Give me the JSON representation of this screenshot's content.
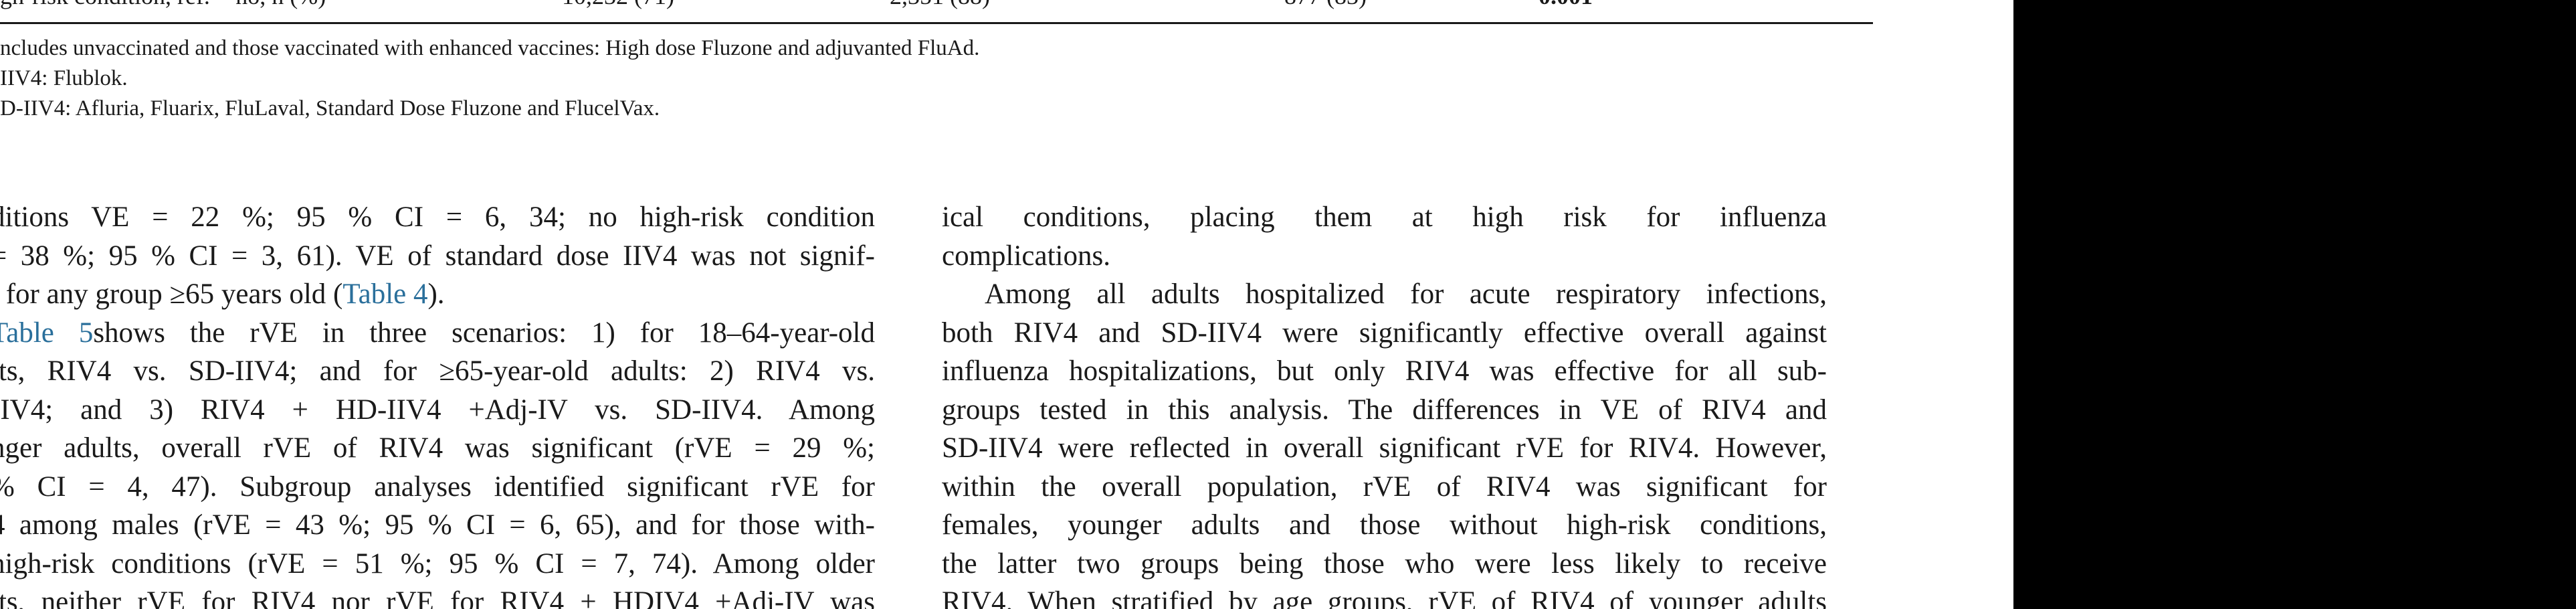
{
  "table_cut_row": {
    "label": "gh-risk condition, ref. = no, n (%)",
    "col2": "10,232 (71)",
    "col3": "2,351 (88)",
    "col4": "877 (83)",
    "col5": "0.001"
  },
  "footnotes": [
    "ncludes unvaccinated and those vaccinated with enhanced vaccines: High dose Fluzone and adjuvanted FluAd.",
    "IIV4: Flublok.",
    "D-IIV4: Afluria, Fluarix, FluLaval, Standard Dose Fluzone and FlucelVax."
  ],
  "left_column": [
    {
      "text": "ditions VE = 22 %; 95 % CI = 6, 34; no high-risk condition"
    },
    {
      "text": "= 38 %; 95 % CI = 3, 61). VE of standard dose IIV4 was not signif-"
    },
    {
      "pre": "t for any group ≥65 years old (",
      "ref": "Table 4",
      "post": ").",
      "last": true
    },
    {
      "pre": "",
      "ref": "Table 5",
      "post": " shows the rVE in three scenarios: 1) for 18–64-year-old"
    },
    {
      "text": "lts, RIV4 vs. SD-IIV4; and for ≥65-year-old adults: 2) RIV4 vs."
    },
    {
      "text": "IIV4; and 3) RIV4 + HD-IIV4 +Adj-IV vs. SD-IIV4. Among"
    },
    {
      "text": "nger adults, overall rVE of RIV4 was significant (rVE = 29 %;"
    },
    {
      "text": "% CI = 4, 47). Subgroup analyses identified significant rVE for"
    },
    {
      "text": "4 among males (rVE = 43 %; 95 % CI = 6, 65), and for those with-"
    },
    {
      "text": "high-risk conditions (rVE = 51 %; 95 % CI = 7, 74). Among older"
    },
    {
      "text": "lts, neither rVE for RIV4 nor rVE for RIV4 + HDIV4 +Adj-IV was"
    }
  ],
  "right_column": [
    {
      "text": "ical conditions, placing them at high risk for influenza"
    },
    {
      "text": "complications.",
      "last": true
    },
    {
      "text": "   Among all adults hospitalized for acute respiratory infections,"
    },
    {
      "text": "both RIV4 and SD-IIV4 were significantly effective overall against"
    },
    {
      "text": "influenza hospitalizations, but only RIV4 was effective for all sub-"
    },
    {
      "text": "groups tested in this analysis. The differences in VE of RIV4 and"
    },
    {
      "text": "SD-IIV4 were reflected in overall significant rVE for RIV4. However,"
    },
    {
      "text": "within the overall population, rVE of RIV4 was significant for"
    },
    {
      "text": "females, younger adults and those without high-risk conditions,"
    },
    {
      "text": "the latter two groups being those who were less likely to receive"
    },
    {
      "text": "RIV4. When stratified by age groups, rVE of RIV4 of younger adults"
    }
  ],
  "colors": {
    "link": "#2a6f9b",
    "text": "#1a1a1a",
    "band": "#000000"
  }
}
